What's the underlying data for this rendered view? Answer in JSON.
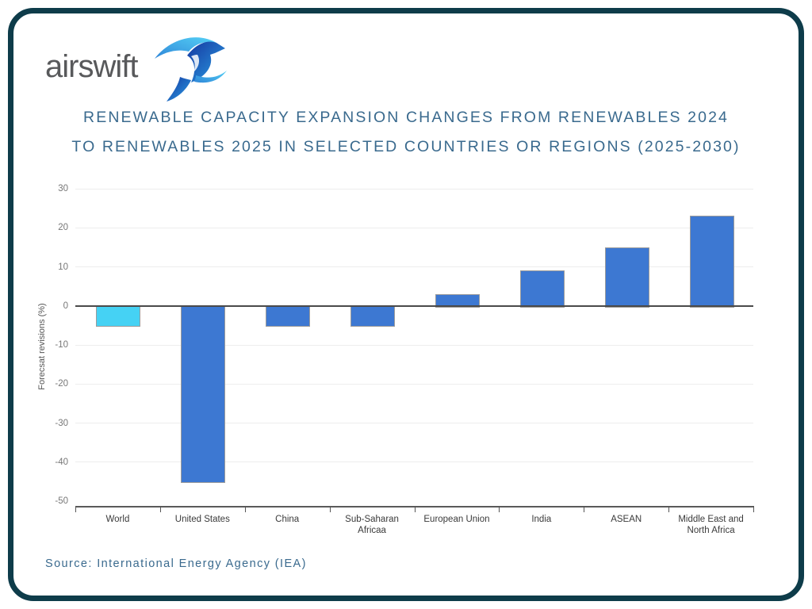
{
  "page": {
    "border_color": "#0e3c4a",
    "background_color": "#ffffff"
  },
  "logo": {
    "text": "airswift",
    "text_color": "#58595b",
    "bird_icon": "swift-bird",
    "bird_colors": [
      "#16379f",
      "#2f86d8",
      "#55d1f6"
    ]
  },
  "title": {
    "lines": [
      "RENEWABLE CAPACITY EXPANSION CHANGES FROM RENEWABLES 2024",
      "TO RENEWABLES 2025 IN SELECTED COUNTRIES OR REGIONS (2025-2030)",
      ""
    ],
    "color": "#3a6a8e"
  },
  "source": {
    "text": "Source: International Energy Agency (IEA)"
  },
  "chart_data": {
    "type": "bar",
    "title": "Renewable capacity expansion changes from Renewables 2024 to Renewables 2025 in selected countries or regions (2025-2030)",
    "categories": [
      "World",
      "United States",
      "China",
      "Sub-Saharan Africaa",
      "European Union",
      "India",
      "ASEAN",
      "Middle East and North Africa"
    ],
    "values": [
      -5,
      -45,
      -5,
      -5,
      3,
      9,
      15,
      23
    ],
    "unit": "%",
    "xlabel": "",
    "ylabel": "Forecsat revisions (%)",
    "ylim": [
      -50,
      30
    ],
    "ytick_step": 10,
    "grid": true,
    "legend": "none",
    "bar_color": "#3d78d2",
    "highlight_index": 0,
    "highlight_color": "#45d2f4",
    "bar_border_color": "#9b9b9b",
    "gridline_color": "#ededed",
    "zero_line_color": "#4a4a4a"
  }
}
